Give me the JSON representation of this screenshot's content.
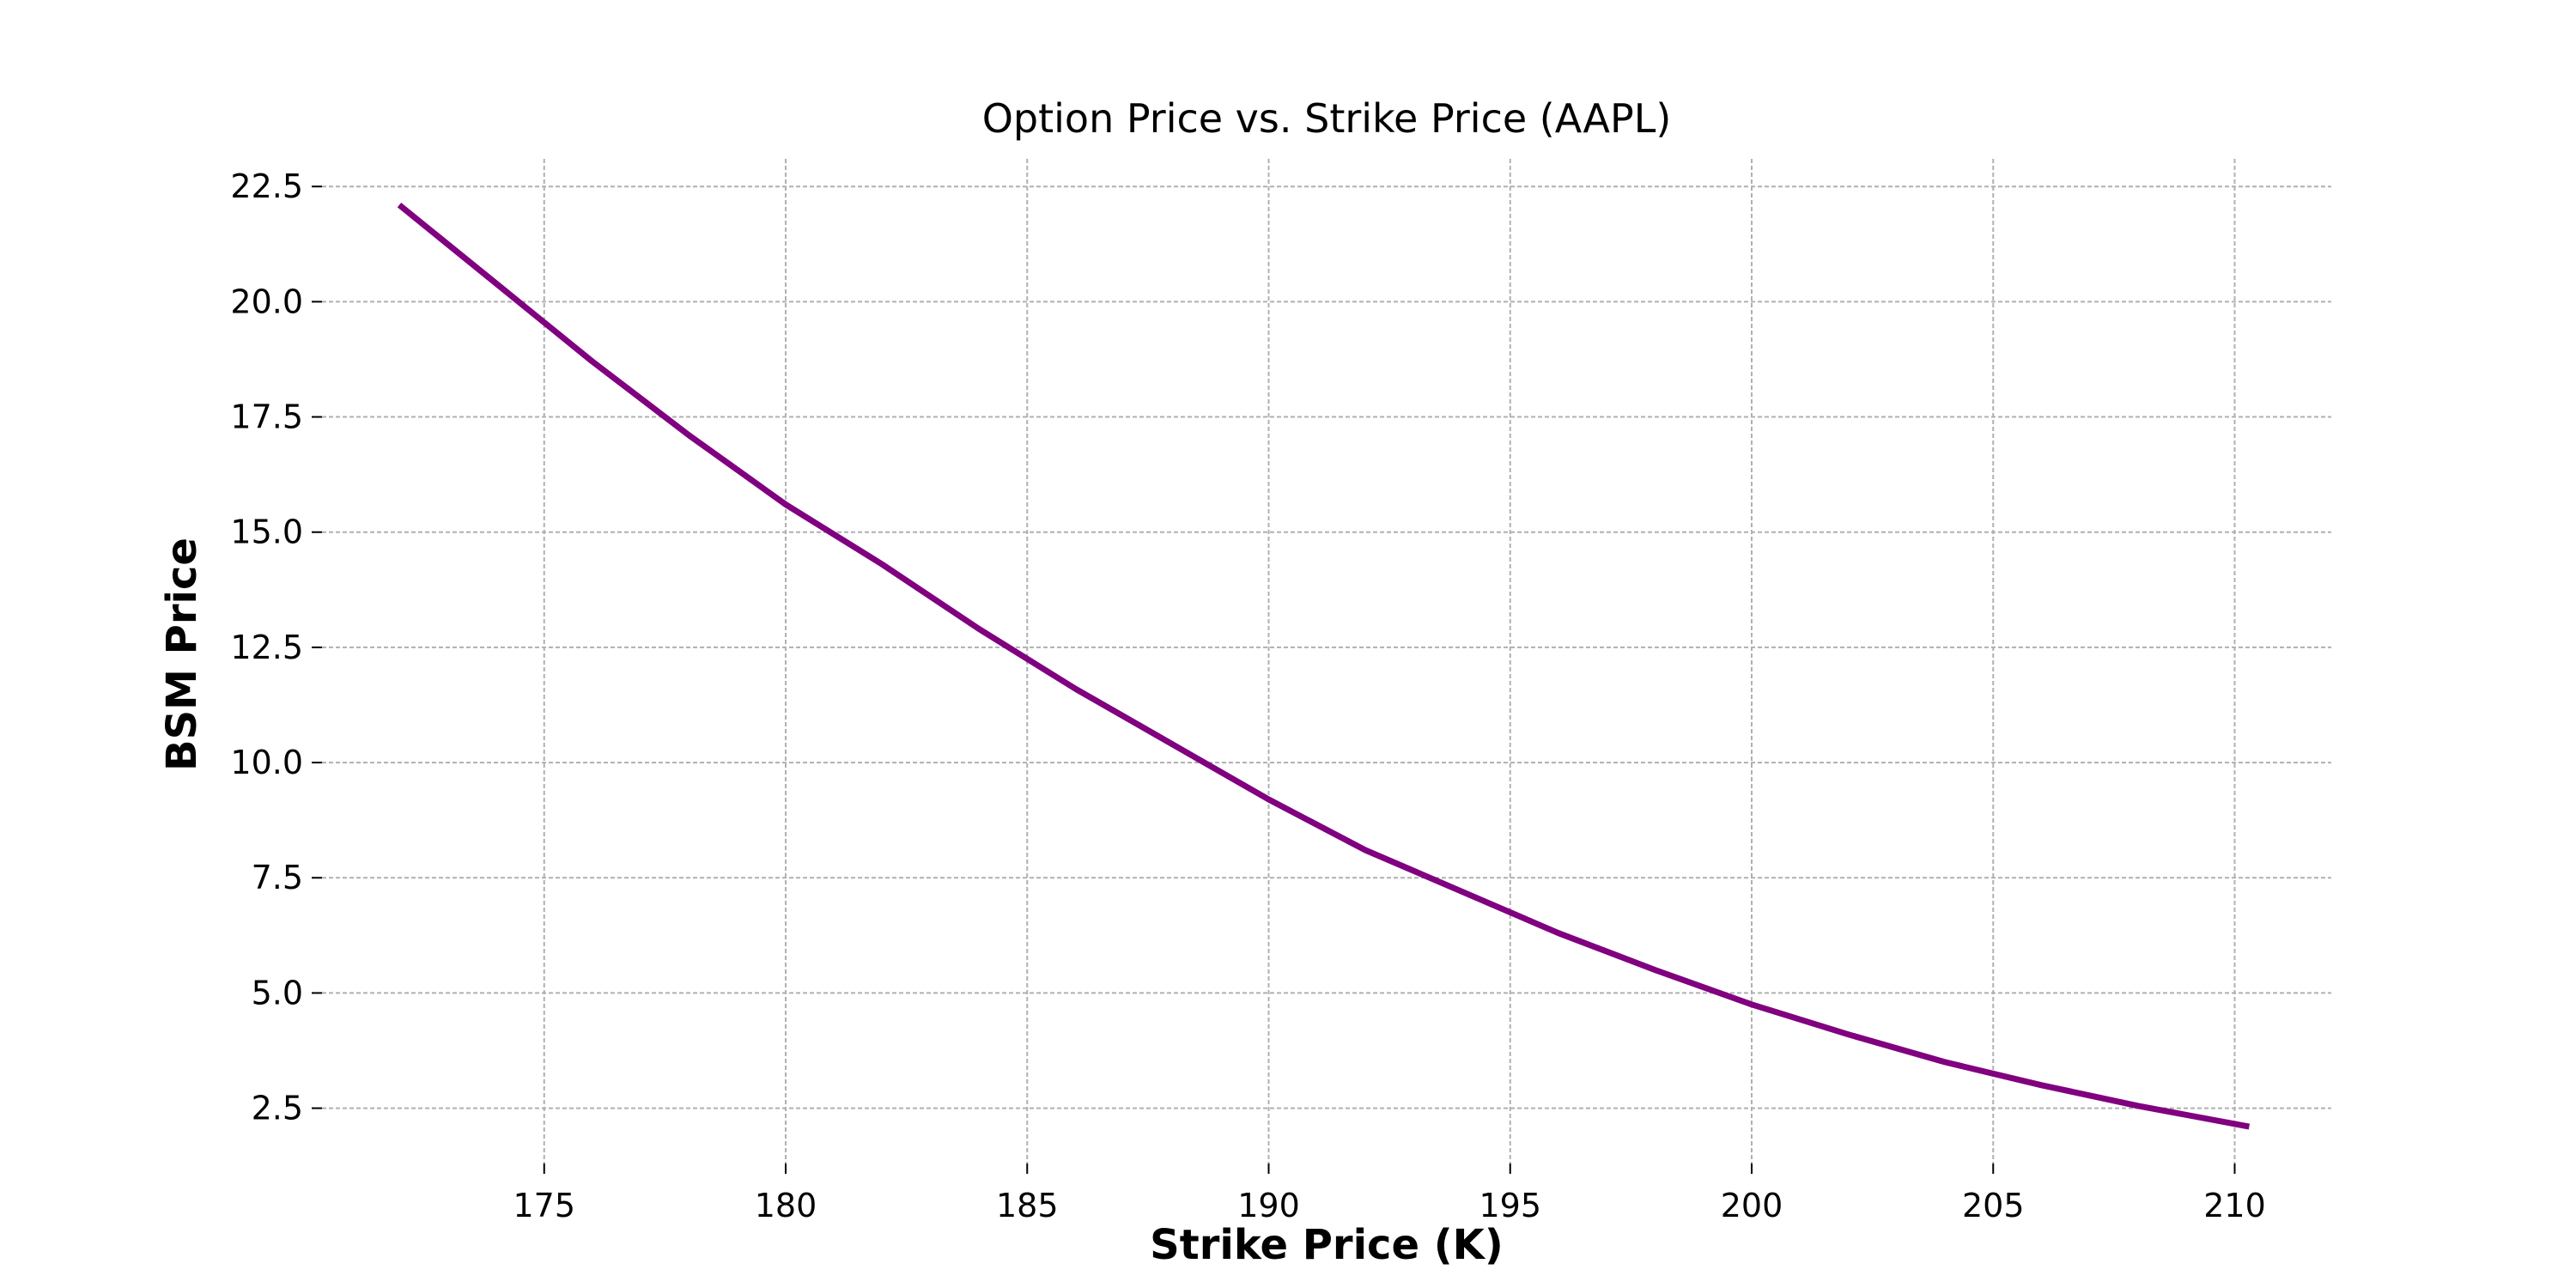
{
  "chart_data": {
    "type": "line",
    "title": "Option Price vs. Strike Price (AAPL)",
    "xlabel": "Strike Price (K)",
    "ylabel": "BSM Price",
    "xlim": [
      170.4,
      212.0
    ],
    "ylim": [
      1.3,
      23.1
    ],
    "x_ticks": [
      175,
      180,
      185,
      190,
      195,
      200,
      205,
      210
    ],
    "y_ticks": [
      2.5,
      5.0,
      7.5,
      10.0,
      12.5,
      15.0,
      17.5,
      20.0,
      22.5
    ],
    "x_tick_labels": [
      "175",
      "180",
      "185",
      "190",
      "195",
      "200",
      "205",
      "210"
    ],
    "y_tick_labels": [
      "2.5",
      "5.0",
      "7.5",
      "10.0",
      "12.5",
      "15.0",
      "17.5",
      "20.0",
      "22.5"
    ],
    "grid": true,
    "series": [
      {
        "color": "#800080",
        "x": [
          172.0,
          174.0,
          176.0,
          178.0,
          180.0,
          182.0,
          184.0,
          186.0,
          188.0,
          190.0,
          192.0,
          194.0,
          196.0,
          198.0,
          200.0,
          202.0,
          204.0,
          206.0,
          208.0,
          210.3
        ],
        "y": [
          22.1,
          20.4,
          18.7,
          17.1,
          15.6,
          14.3,
          12.9,
          11.6,
          10.4,
          9.2,
          8.1,
          7.2,
          6.3,
          5.5,
          4.75,
          4.1,
          3.5,
          3.0,
          2.55,
          2.1
        ]
      }
    ]
  }
}
